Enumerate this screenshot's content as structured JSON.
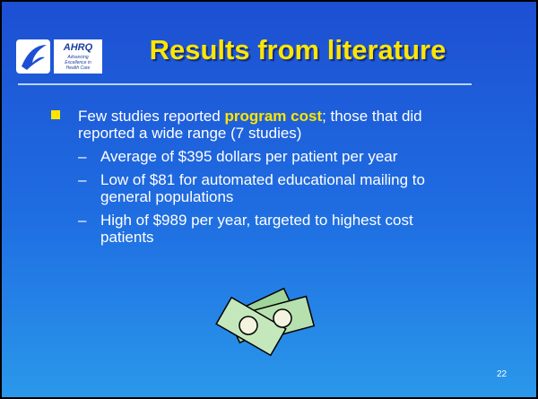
{
  "header": {
    "title": "Results from literature",
    "logo": {
      "name": "AHRQ",
      "tagline": [
        "Advancing",
        "Excellence in",
        "Health Care"
      ]
    }
  },
  "bullets": [
    {
      "parts": [
        "Few studies reported ",
        "program cost",
        "; those that did reported a wide range (7 studies)"
      ],
      "sub": [
        "Average of $395 dollars per patient per year",
        "Low of $81 for automated educational mailing to general populations",
        "High of $989 per year, targeted to highest cost patients"
      ]
    }
  ],
  "page_number": "22"
}
